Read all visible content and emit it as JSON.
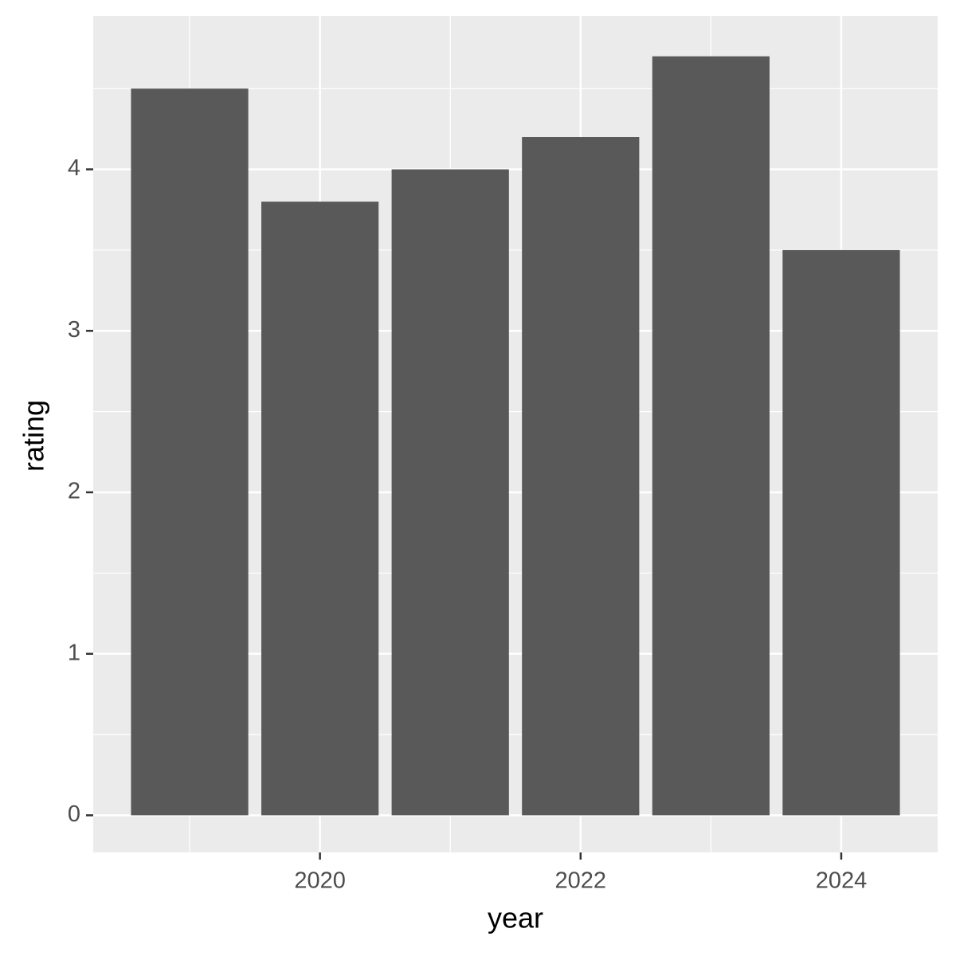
{
  "chart_data": {
    "type": "bar",
    "x_label": "year",
    "y_label": "rating",
    "x": [
      2019,
      2020,
      2021,
      2022,
      2023,
      2024
    ],
    "values": [
      4.5,
      3.8,
      4.0,
      4.2,
      4.7,
      3.5
    ],
    "color": "#595959",
    "background": "#ebebeb",
    "xlim": [
      2018.26,
      2024.74
    ],
    "xticks": [
      2020,
      2022,
      2024
    ],
    "ylim": [
      -0.23,
      4.95
    ],
    "yticks": [
      0,
      1,
      2,
      3,
      4
    ],
    "grid": true
  }
}
